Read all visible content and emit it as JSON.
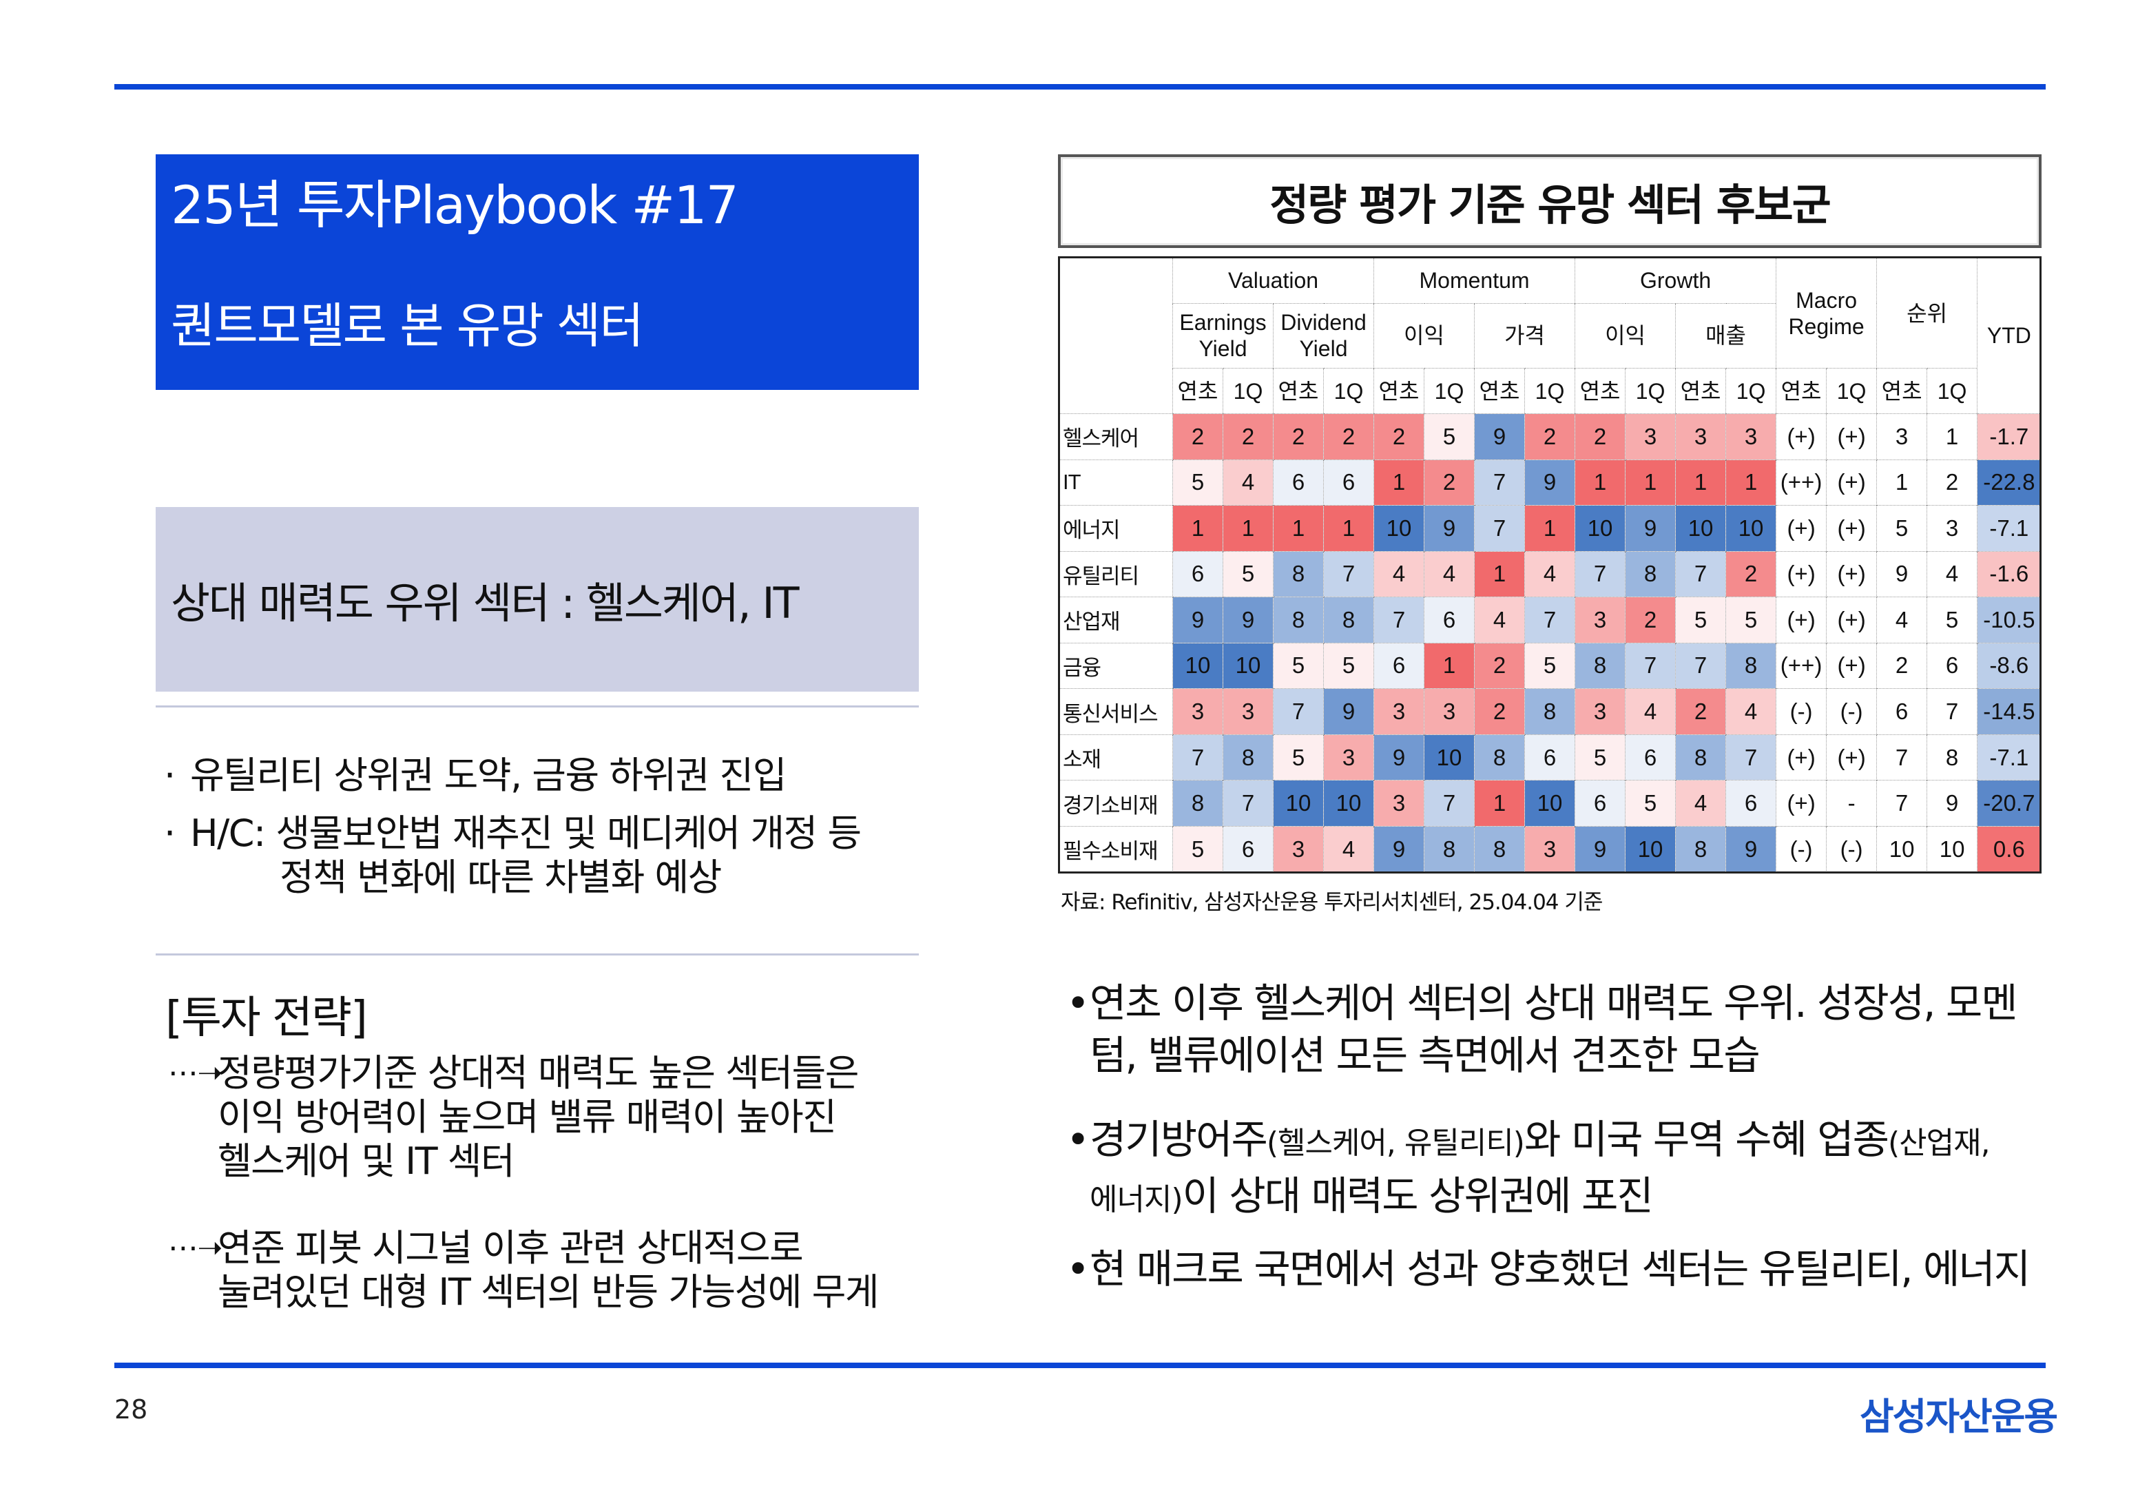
{
  "header": {
    "title": "25년 투자Playbook #17",
    "subtitle": "퀀트모델로 본 유망 섹터"
  },
  "left": {
    "highlight": "상대 매력도 우위 섹터 : 헬스케어, IT",
    "bullets": [
      {
        "marker": "·",
        "lines": [
          "유틸리티 상위권 도약, 금융 하위권 진입"
        ]
      },
      {
        "marker": "·",
        "lines": [
          "H/C: 생물보안법 재추진 및 메디케어 개정 등",
          "정책 변화에 따른 차별화 예상"
        ]
      }
    ],
    "strategy_title": "[투자 전략]",
    "strategy_items": [
      {
        "lines": [
          "정량평가기준 상대적 매력도 높은 섹터들은",
          "이익 방어력이 높으며 밸류 매력이 높아진",
          "헬스케어 및 IT 섹터"
        ]
      },
      {
        "lines": [
          "연준 피봇 시그널 이후 관련 상대적으로",
          "눌려있던 대형 IT 섹터의 반등 가능성에 무게"
        ]
      }
    ]
  },
  "table": {
    "title": "정량 평가 기준 유망 섹터 후보군",
    "groups": [
      "Valuation",
      "Momentum",
      "Growth"
    ],
    "macro_label": [
      "Macro",
      "Regime"
    ],
    "rank_label": "순위",
    "ytd_label": "YTD",
    "subgroups": [
      [
        "Earnings",
        "Yield"
      ],
      [
        "Dividend",
        "Yield"
      ],
      [
        "이익"
      ],
      [
        "가격"
      ],
      [
        "이익"
      ],
      [
        "매출"
      ]
    ],
    "period_labels": [
      "연초",
      "1Q"
    ],
    "rows": [
      {
        "sector": "헬스케어",
        "scores": [
          2,
          2,
          2,
          2,
          2,
          5,
          9,
          2,
          2,
          3,
          3,
          3
        ],
        "macro": [
          "(+)",
          "(+)"
        ],
        "rank": [
          3,
          1
        ],
        "ytd": "-1.7"
      },
      {
        "sector": "IT",
        "scores": [
          5,
          4,
          6,
          6,
          1,
          2,
          7,
          9,
          1,
          1,
          1,
          1
        ],
        "macro": [
          "(++)",
          "(+)"
        ],
        "rank": [
          1,
          2
        ],
        "ytd": "-22.8"
      },
      {
        "sector": "에너지",
        "scores": [
          1,
          1,
          1,
          1,
          10,
          9,
          7,
          1,
          10,
          9,
          10,
          10
        ],
        "macro": [
          "(+)",
          "(+)"
        ],
        "rank": [
          5,
          3
        ],
        "ytd": "-7.1"
      },
      {
        "sector": "유틸리티",
        "scores": [
          6,
          5,
          8,
          7,
          4,
          4,
          1,
          4,
          7,
          8,
          7,
          2
        ],
        "macro": [
          "(+)",
          "(+)"
        ],
        "rank": [
          9,
          4
        ],
        "ytd": "-1.6"
      },
      {
        "sector": "산업재",
        "scores": [
          9,
          9,
          8,
          8,
          7,
          6,
          4,
          7,
          3,
          2,
          5,
          5
        ],
        "macro": [
          "(+)",
          "(+)"
        ],
        "rank": [
          4,
          5
        ],
        "ytd": "-10.5"
      },
      {
        "sector": "금융",
        "scores": [
          10,
          10,
          5,
          5,
          6,
          1,
          2,
          5,
          8,
          7,
          7,
          8
        ],
        "macro": [
          "(++)",
          "(+)"
        ],
        "rank": [
          2,
          6
        ],
        "ytd": "-8.6"
      },
      {
        "sector": "통신서비스",
        "scores": [
          3,
          3,
          7,
          9,
          3,
          3,
          2,
          8,
          3,
          4,
          2,
          4
        ],
        "macro": [
          "(-)",
          "(-)"
        ],
        "rank": [
          6,
          7
        ],
        "ytd": "-14.5"
      },
      {
        "sector": "소재",
        "scores": [
          7,
          8,
          5,
          3,
          9,
          10,
          8,
          6,
          5,
          6,
          8,
          7
        ],
        "macro": [
          "(+)",
          "(+)"
        ],
        "rank": [
          7,
          8
        ],
        "ytd": "-7.1"
      },
      {
        "sector": "경기소비재",
        "scores": [
          8,
          7,
          10,
          10,
          3,
          7,
          1,
          10,
          6,
          5,
          4,
          6
        ],
        "macro": [
          "(+)",
          "-"
        ],
        "rank": [
          7,
          9
        ],
        "ytd": "-20.7"
      },
      {
        "sector": "필수소비재",
        "scores": [
          5,
          6,
          3,
          4,
          9,
          8,
          8,
          3,
          9,
          10,
          8,
          9
        ],
        "macro": [
          "(-)",
          "(-)"
        ],
        "rank": [
          10,
          10
        ],
        "ytd": "0.6"
      }
    ],
    "source": "자료: Refinitiv, 삼성자산운용 투자리서치센터, 25.04.04 기준",
    "colors": {
      "high": "#f16a6c",
      "mid": "#ffffff",
      "low": "#4a7cc4"
    }
  },
  "right_bullets": [
    {
      "html_lines": [
        [
          "연초 이후 헬스케어 섹터의 상대 매력도 우위. 성장성, 모멘"
        ],
        [
          "텀, 밸류에이션 모든 측면에서 견조한 모습"
        ]
      ]
    },
    {
      "parts": [
        {
          "t": "경기방어주",
          "s": false
        },
        {
          "t": "(헬스케어, 유틸리티)",
          "s": true
        },
        {
          "t": "와 미국 무역 수혜 업종",
          "s": false
        },
        {
          "t": "(산업재,",
          "s": true
        }
      ],
      "parts2": [
        {
          "t": "에너지)",
          "s": true
        },
        {
          "t": "이 상대 매력도 상위권에 포진",
          "s": false
        }
      ]
    },
    {
      "html_lines": [
        [
          "현 매크로 국면에서 성과 양호했던 섹터는 유틸리티, 에너지"
        ]
      ]
    }
  ],
  "footer": {
    "page": "28",
    "logo": "삼성자산운용"
  }
}
